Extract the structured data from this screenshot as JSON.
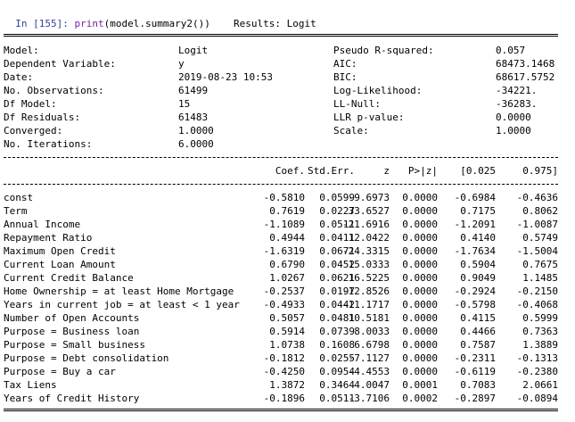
{
  "cell": {
    "prompt": "In [155]:",
    "code_fn": "print",
    "code_rest": "(model.summary2())"
  },
  "results_title": "Results: Logit",
  "summary_left": [
    {
      "label": "Model:",
      "value": "Logit"
    },
    {
      "label": "Dependent Variable:",
      "value": "y"
    },
    {
      "label": "Date:",
      "value": "2019-08-23 10:53"
    },
    {
      "label": "No. Observations:",
      "value": "61499"
    },
    {
      "label": "Df Model:",
      "value": "15"
    },
    {
      "label": "Df Residuals:",
      "value": "61483"
    },
    {
      "label": "Converged:",
      "value": "1.0000"
    },
    {
      "label": "No. Iterations:",
      "value": "6.0000"
    }
  ],
  "summary_right": [
    {
      "label": "Pseudo R-squared:",
      "value": "0.057"
    },
    {
      "label": "AIC:",
      "value": "68473.1468"
    },
    {
      "label": "BIC:",
      "value": "68617.5752"
    },
    {
      "label": "Log-Likelihood:",
      "value": "-34221."
    },
    {
      "label": "LL-Null:",
      "value": "-36283."
    },
    {
      "label": "LLR p-value:",
      "value": "0.0000"
    },
    {
      "label": "Scale:",
      "value": "1.0000"
    }
  ],
  "coef_headers": [
    "Coef.",
    "Std.Err.",
    "z",
    "P>|z|",
    "[0.025",
    "0.975]"
  ],
  "rows": [
    {
      "name": "const",
      "vals": [
        "-0.5810",
        "0.0599",
        "-9.6973",
        "0.0000",
        "-0.6984",
        "-0.4636"
      ]
    },
    {
      "name": "Term",
      "vals": [
        "0.7619",
        "0.0227",
        "33.6527",
        "0.0000",
        "0.7175",
        "0.8062"
      ]
    },
    {
      "name": "Annual Income",
      "vals": [
        "-1.1089",
        "0.0511",
        "-21.6916",
        "0.0000",
        "-1.2091",
        "-1.0087"
      ]
    },
    {
      "name": "Repayment Ratio",
      "vals": [
        "0.4944",
        "0.0411",
        "12.0422",
        "0.0000",
        "0.4140",
        "0.5749"
      ]
    },
    {
      "name": "Maximum Open Credit",
      "vals": [
        "-1.6319",
        "0.0671",
        "-24.3315",
        "0.0000",
        "-1.7634",
        "-1.5004"
      ]
    },
    {
      "name": "Current Loan Amount",
      "vals": [
        "0.6790",
        "0.0452",
        "15.0333",
        "0.0000",
        "0.5904",
        "0.7675"
      ]
    },
    {
      "name": "Current Credit Balance",
      "vals": [
        "1.0267",
        "0.0621",
        "16.5225",
        "0.0000",
        "0.9049",
        "1.1485"
      ]
    },
    {
      "name": "Home Ownership = at least Home Mortgage",
      "vals": [
        "-0.2537",
        "0.0197",
        "-12.8526",
        "0.0000",
        "-0.2924",
        "-0.2150"
      ]
    },
    {
      "name": "Years in current job = at least < 1 year",
      "vals": [
        "-0.4933",
        "0.0442",
        "-11.1717",
        "0.0000",
        "-0.5798",
        "-0.4068"
      ]
    },
    {
      "name": "Number of Open Accounts",
      "vals": [
        "0.5057",
        "0.0481",
        "10.5181",
        "0.0000",
        "0.4115",
        "0.5999"
      ]
    },
    {
      "name": "Purpose = Business loan",
      "vals": [
        "0.5914",
        "0.0739",
        "8.0033",
        "0.0000",
        "0.4466",
        "0.7363"
      ]
    },
    {
      "name": "Purpose = Small business",
      "vals": [
        "1.0738",
        "0.1608",
        "6.6798",
        "0.0000",
        "0.7587",
        "1.3889"
      ]
    },
    {
      "name": "Purpose = Debt consolidation",
      "vals": [
        "-0.1812",
        "0.0255",
        "-7.1127",
        "0.0000",
        "-0.2311",
        "-0.1313"
      ]
    },
    {
      "name": "Purpose = Buy a car",
      "vals": [
        "-0.4250",
        "0.0954",
        "-4.4553",
        "0.0000",
        "-0.6119",
        "-0.2380"
      ]
    },
    {
      "name": "Tax Liens",
      "vals": [
        "1.3872",
        "0.3464",
        "4.0047",
        "0.0001",
        "0.7083",
        "2.0661"
      ]
    },
    {
      "name": "Years of Credit History",
      "vals": [
        "-0.1896",
        "0.0511",
        "-3.7106",
        "0.0002",
        "-0.2897",
        "-0.0894"
      ]
    }
  ]
}
